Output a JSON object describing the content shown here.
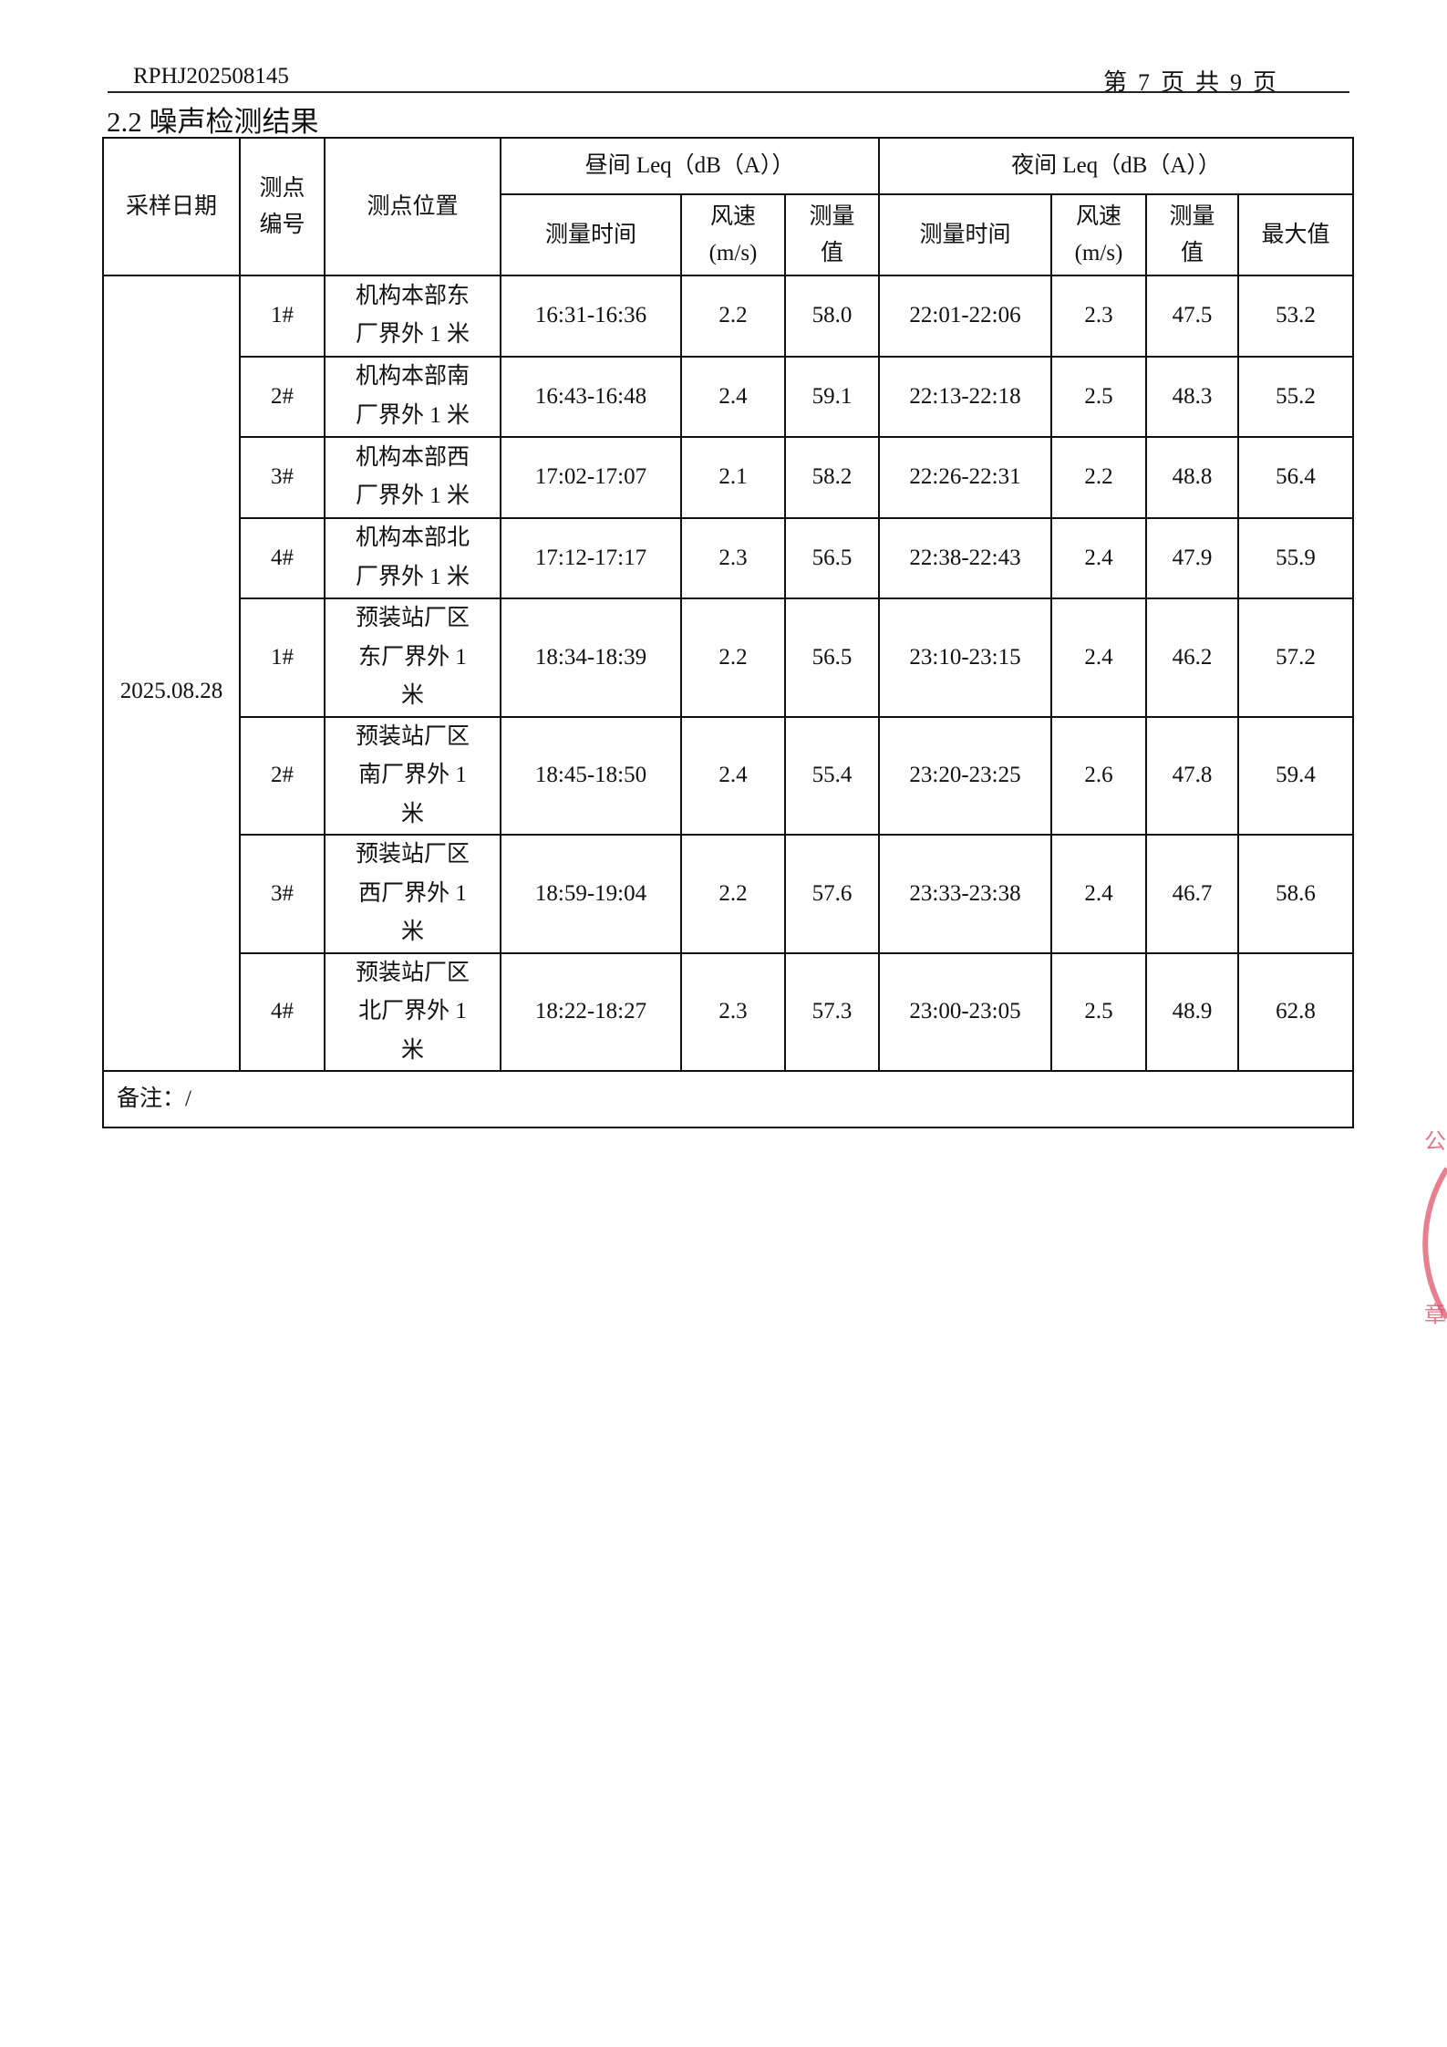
{
  "header": {
    "report_no": "RPHJ202508145",
    "page_label": [
      "第",
      "7",
      "页",
      "共",
      "9",
      "页"
    ]
  },
  "section_title": "2.2 噪声检测结果",
  "table": {
    "head": {
      "date": "采样日期",
      "point_no": "测点编号",
      "location": "测点位置",
      "day_group": "昼间 Leq（dB（A））",
      "night_group": "夜间 Leq（dB（A））",
      "time": "测量时间",
      "wind": "风速(m/s)",
      "value": "测量值",
      "max": "最大值"
    },
    "date": "2025.08.28",
    "rows": [
      {
        "no": "1#",
        "loc": "机构本部东厂界外 1 米",
        "day_time": "16:31-16:36",
        "day_wind": "2.2",
        "day_val": "58.0",
        "night_time": "22:01-22:06",
        "night_wind": "2.3",
        "night_val": "47.5",
        "max": "53.2"
      },
      {
        "no": "2#",
        "loc": "机构本部南厂界外 1 米",
        "day_time": "16:43-16:48",
        "day_wind": "2.4",
        "day_val": "59.1",
        "night_time": "22:13-22:18",
        "night_wind": "2.5",
        "night_val": "48.3",
        "max": "55.2"
      },
      {
        "no": "3#",
        "loc": "机构本部西厂界外 1 米",
        "day_time": "17:02-17:07",
        "day_wind": "2.1",
        "day_val": "58.2",
        "night_time": "22:26-22:31",
        "night_wind": "2.2",
        "night_val": "48.8",
        "max": "56.4"
      },
      {
        "no": "4#",
        "loc": "机构本部北厂界外 1 米",
        "day_time": "17:12-17:17",
        "day_wind": "2.3",
        "day_val": "56.5",
        "night_time": "22:38-22:43",
        "night_wind": "2.4",
        "night_val": "47.9",
        "max": "55.9"
      },
      {
        "no": "1#",
        "loc": "预装站厂区东厂界外 1 米",
        "day_time": "18:34-18:39",
        "day_wind": "2.2",
        "day_val": "56.5",
        "night_time": "23:10-23:15",
        "night_wind": "2.4",
        "night_val": "46.2",
        "max": "57.2"
      },
      {
        "no": "2#",
        "loc": "预装站厂区南厂界外 1 米",
        "day_time": "18:45-18:50",
        "day_wind": "2.4",
        "day_val": "55.4",
        "night_time": "23:20-23:25",
        "night_wind": "2.6",
        "night_val": "47.8",
        "max": "59.4"
      },
      {
        "no": "3#",
        "loc": "预装站厂区西厂界外 1 米",
        "day_time": "18:59-19:04",
        "day_wind": "2.2",
        "day_val": "57.6",
        "night_time": "23:33-23:38",
        "night_wind": "2.4",
        "night_val": "46.7",
        "max": "58.6"
      },
      {
        "no": "4#",
        "loc": "预装站厂区北厂界外 1 米",
        "day_time": "18:22-18:27",
        "day_wind": "2.3",
        "day_val": "57.3",
        "night_time": "23:00-23:05",
        "night_wind": "2.5",
        "night_val": "48.9",
        "max": "62.8"
      }
    ],
    "remark": "备注：/"
  },
  "stamp": {
    "color": "#e0556a",
    "visible_chars": [
      "公",
      "章"
    ]
  }
}
